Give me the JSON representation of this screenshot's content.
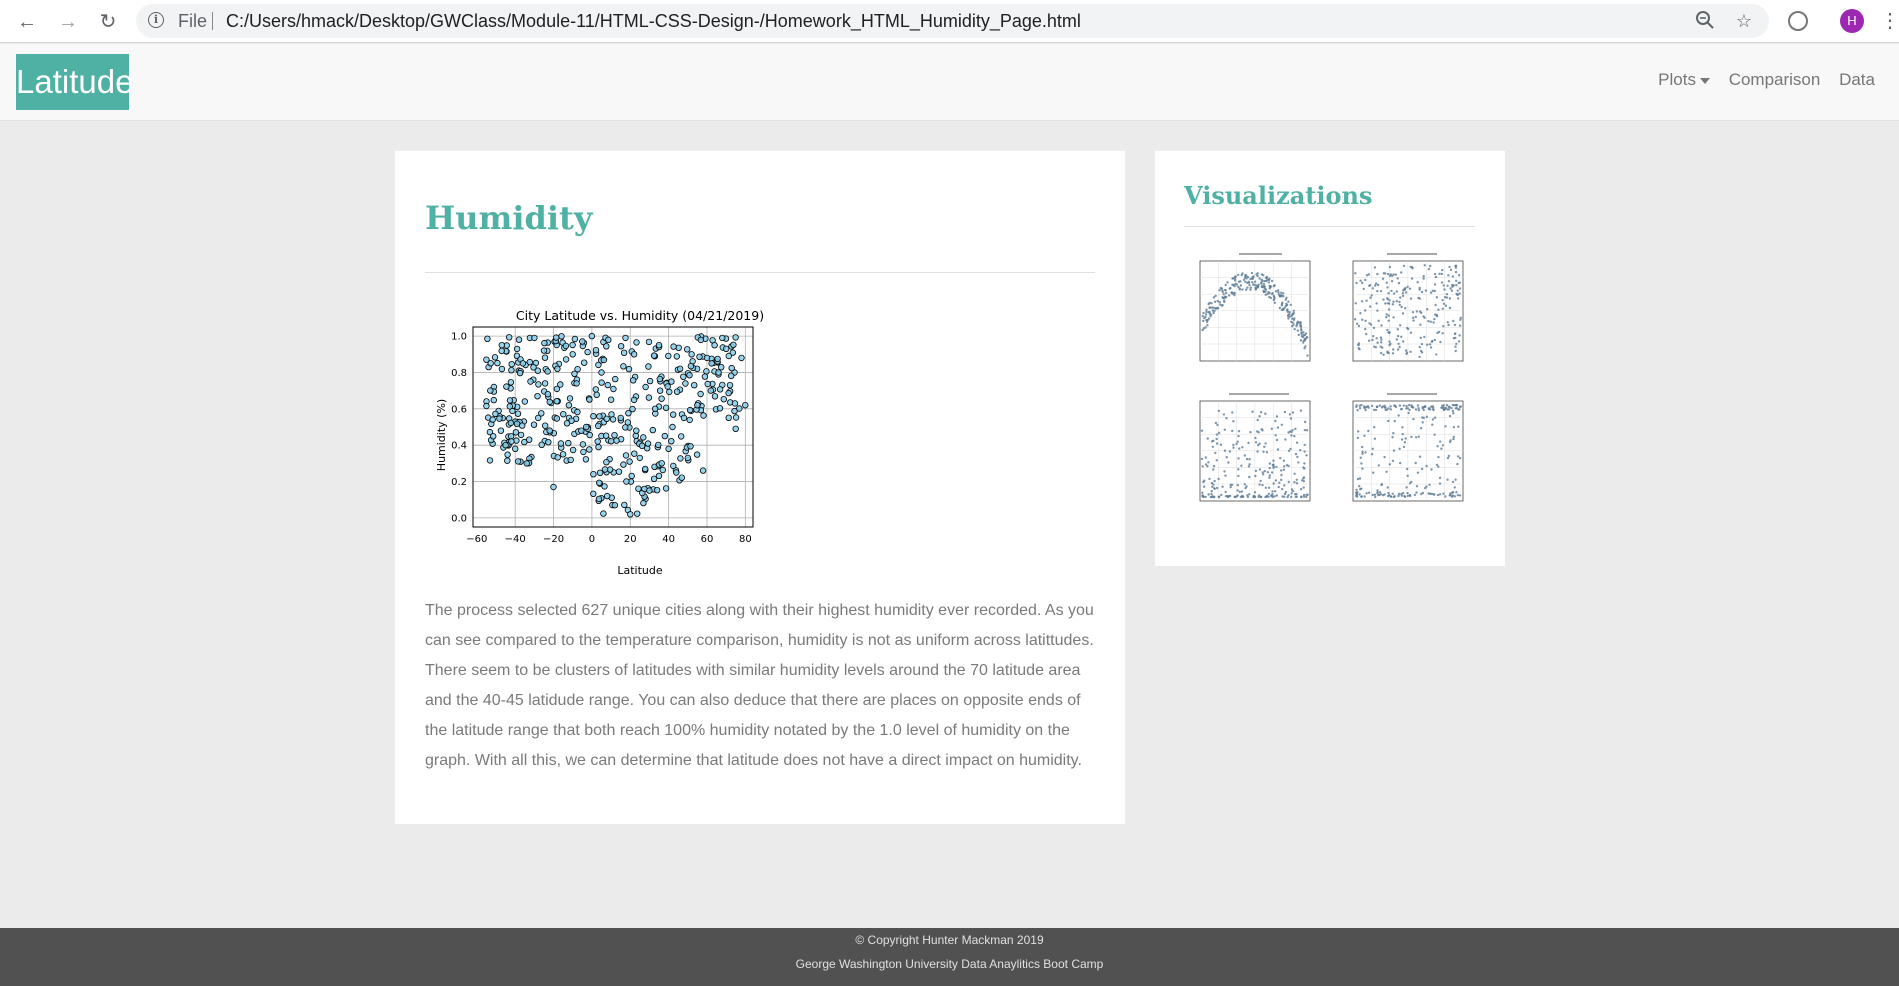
{
  "browser": {
    "scheme_label": "File",
    "url": "C:/Users/hmack/Desktop/GWClass/Module-11/HTML-CSS-Design-/Homework_HTML_Humidity_Page.html",
    "profile_initial": "H"
  },
  "navbar": {
    "brand": "Latitude",
    "links": [
      "Plots",
      "Comparison",
      "Data"
    ]
  },
  "main": {
    "title": "Humidity",
    "description": "The process selected 627 unique cities along with their highest humidity ever recorded. As you can see compared to the temperature comparison, humidity is not as uniform across latittudes. There seem to be clusters of latitudes with similar humidity levels around the 70 latitude area and the 40-45 latidude range. You can also deduce that there are places on opposite ends of the latitude range that both reach 100% humidity notated by the 1.0 level of humidity on the graph. With all this, we can determine that latitude does not have a direct impact on humidity."
  },
  "sidebar": {
    "title": "Visualizations"
  },
  "chart_data": {
    "type": "scatter",
    "title": "City Latitude vs. Humidity (04/21/2019)",
    "xlabel": "Latitude",
    "ylabel": "Humidity (%)",
    "xlim": [
      -62,
      84
    ],
    "ylim": [
      -0.05,
      1.05
    ],
    "xticks": [
      "−60",
      "−40",
      "−20",
      "0",
      "20",
      "40",
      "60",
      "80"
    ],
    "yticks": [
      "0.0",
      "0.2",
      "0.4",
      "0.6",
      "0.8",
      "1.0"
    ],
    "grid": true,
    "marker_face": "#87ceeb",
    "marker_edge": "#000000",
    "sample_points": [
      [
        -55,
        0.87
      ],
      [
        -53,
        0.7
      ],
      [
        -47,
        0.95
      ],
      [
        -45,
        0.4
      ],
      [
        -42,
        0.42
      ],
      [
        -40,
        0.38
      ],
      [
        -38,
        0.98
      ],
      [
        -36,
        0.85
      ],
      [
        -35,
        0.64
      ],
      [
        -34,
        0.3
      ],
      [
        -32,
        0.75
      ],
      [
        -30,
        0.99
      ],
      [
        -28,
        0.55
      ],
      [
        -25,
        0.92
      ],
      [
        -22,
        0.48
      ],
      [
        -20,
        0.17
      ],
      [
        -18,
        0.82
      ],
      [
        -15,
        0.35
      ],
      [
        -12,
        0.62
      ],
      [
        -10,
        0.9
      ],
      [
        -8,
        0.74
      ],
      [
        -5,
        0.97
      ],
      [
        -3,
        0.5
      ],
      [
        0,
        1.0
      ],
      [
        3,
        0.42
      ],
      [
        5,
        0.8
      ],
      [
        8,
        0.12
      ],
      [
        10,
        0.65
      ],
      [
        12,
        0.07
      ],
      [
        15,
        0.55
      ],
      [
        18,
        0.2
      ],
      [
        20,
        0.02
      ],
      [
        22,
        0.9
      ],
      [
        25,
        0.33
      ],
      [
        28,
        0.72
      ],
      [
        30,
        0.15
      ],
      [
        33,
        0.6
      ],
      [
        35,
        0.95
      ],
      [
        38,
        0.45
      ],
      [
        40,
        0.38
      ],
      [
        42,
        0.5
      ],
      [
        44,
        0.25
      ],
      [
        46,
        0.82
      ],
      [
        48,
        0.55
      ],
      [
        50,
        0.33
      ],
      [
        52,
        0.9
      ],
      [
        55,
        0.62
      ],
      [
        58,
        0.26
      ],
      [
        60,
        0.88
      ],
      [
        62,
        0.7
      ],
      [
        64,
        0.95
      ],
      [
        66,
        0.8
      ],
      [
        68,
        0.99
      ],
      [
        70,
        0.93
      ],
      [
        72,
        0.73
      ],
      [
        75,
        0.49
      ],
      [
        78,
        0.88
      ],
      [
        80,
        0.62
      ]
    ]
  }
}
